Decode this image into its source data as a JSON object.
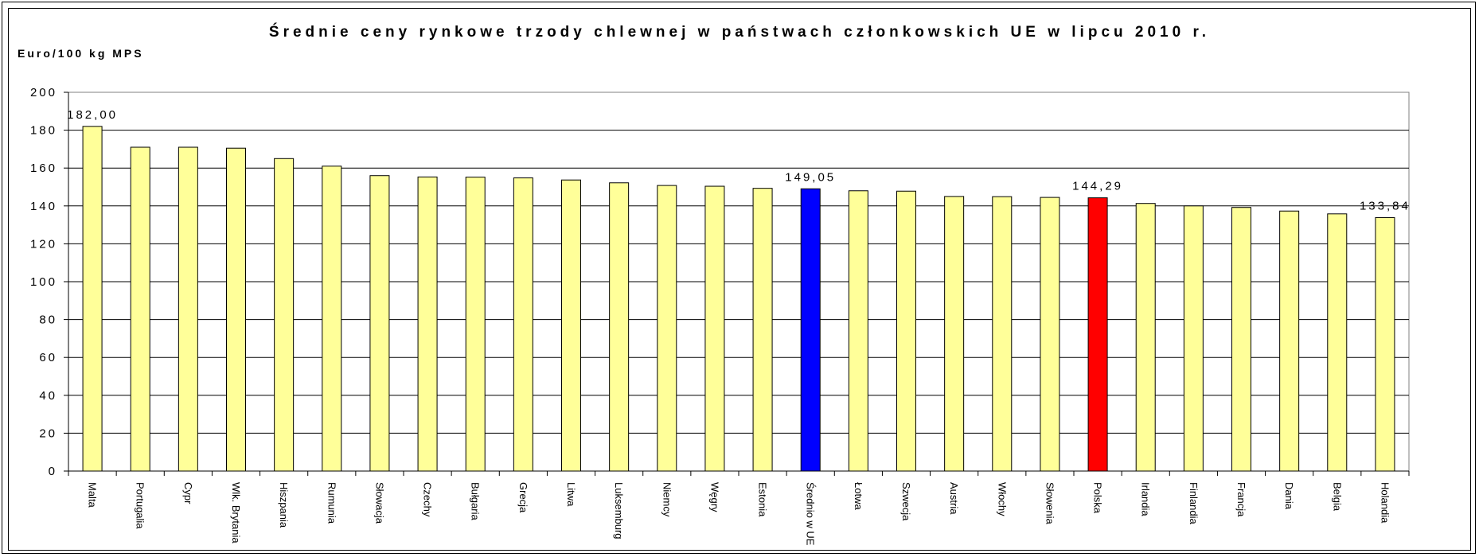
{
  "chart_data": {
    "type": "bar",
    "title": "Średnie ceny rynkowe trzody chlewnej w państwach członkowskich UE w lipcu 2010 r.",
    "ylabel": "Euro/100 kg MPS",
    "xlabel": "",
    "ylim": [
      0,
      200
    ],
    "yticks": [
      0,
      20,
      40,
      60,
      80,
      100,
      120,
      140,
      160,
      180,
      200
    ],
    "ytick_labels": [
      "0",
      "20",
      "40",
      "60",
      "80",
      "100",
      "120",
      "140",
      "160",
      "180",
      "200"
    ],
    "grid": true,
    "legend": "none",
    "categories": [
      "Malta",
      "Portugalia",
      "Cypr",
      "Wlk. Brytania",
      "Hiszpania",
      "Rumunia",
      "Słowacja",
      "Czechy",
      "Bułgaria",
      "Grecja",
      "Litwa",
      "Luksemburg",
      "Niemcy",
      "Węgry",
      "Estonia",
      "Średnio w UE",
      "Łotwa",
      "Szwecja",
      "Austria",
      "Włochy",
      "Słowenia",
      "Polska",
      "Irlandia",
      "Finlandia",
      "Francja",
      "Dania",
      "Belgia",
      "Holandia"
    ],
    "values": [
      182.0,
      171.0,
      171.0,
      170.5,
      165.0,
      161.0,
      156.0,
      155.3,
      155.2,
      154.8,
      153.7,
      152.2,
      150.8,
      150.4,
      149.3,
      149.05,
      148.0,
      147.8,
      145.0,
      144.9,
      144.5,
      144.29,
      141.3,
      140.0,
      139.2,
      137.3,
      135.8,
      133.84
    ],
    "bar_colors": [
      "#ffff99",
      "#ffff99",
      "#ffff99",
      "#ffff99",
      "#ffff99",
      "#ffff99",
      "#ffff99",
      "#ffff99",
      "#ffff99",
      "#ffff99",
      "#ffff99",
      "#ffff99",
      "#ffff99",
      "#ffff99",
      "#ffff99",
      "#0000ff",
      "#ffff99",
      "#ffff99",
      "#ffff99",
      "#ffff99",
      "#ffff99",
      "#ff0000",
      "#ffff99",
      "#ffff99",
      "#ffff99",
      "#ffff99",
      "#ffff99",
      "#ffff99"
    ],
    "data_labels": [
      {
        "category": "Malta",
        "text": "182,00"
      },
      {
        "category": "Średnio w UE",
        "text": "149,05"
      },
      {
        "category": "Polska",
        "text": "144,29"
      },
      {
        "category": "Holandia",
        "text": "133,84"
      }
    ]
  }
}
